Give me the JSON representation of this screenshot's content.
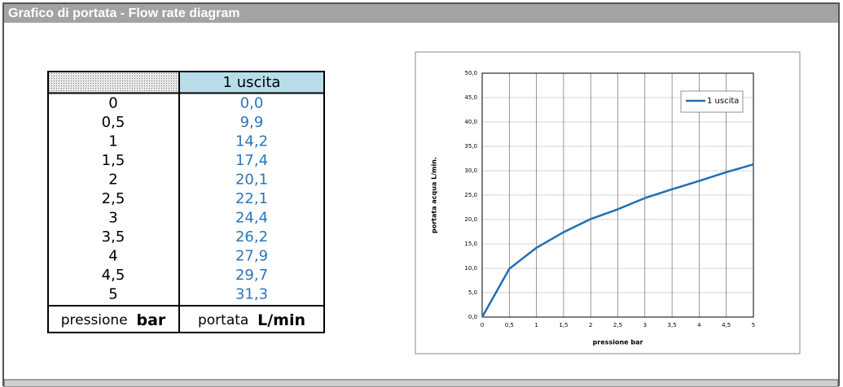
{
  "header": {
    "title": "Grafico di portata - Flow rate diagram"
  },
  "table": {
    "header": "1 uscita",
    "rows": [
      [
        "0",
        "0,0"
      ],
      [
        "0,5",
        "9,9"
      ],
      [
        "1",
        "14,2"
      ],
      [
        "1,5",
        "17,4"
      ],
      [
        "2",
        "20,1"
      ],
      [
        "2,5",
        "22,1"
      ],
      [
        "3",
        "24,4"
      ],
      [
        "3,5",
        "26,2"
      ],
      [
        "4",
        "27,9"
      ],
      [
        "4,5",
        "29,7"
      ],
      [
        "5",
        "31,3"
      ]
    ],
    "footer": [
      [
        "pressione",
        "bar"
      ],
      [
        "portata",
        "L/min"
      ]
    ]
  },
  "chart_data": {
    "type": "line",
    "x": [
      0,
      0.5,
      1,
      1.5,
      2,
      2.5,
      3,
      3.5,
      4,
      4.5,
      5
    ],
    "series": [
      {
        "name": "1 uscita",
        "color": "#1f6fb5",
        "values": [
          0,
          9.9,
          14.2,
          17.4,
          20.1,
          22.1,
          24.4,
          26.2,
          27.9,
          29.7,
          31.3
        ]
      }
    ],
    "xlabel": "pressione bar",
    "ylabel": "portata acqua  L/min.",
    "xlim": [
      0,
      5
    ],
    "ylim": [
      0,
      50
    ],
    "xticks": [
      0,
      {
        "value": 0.5,
        "label": "0,5"
      },
      1,
      {
        "value": 1.5,
        "label": "1,5"
      },
      2,
      {
        "value": 2.5,
        "label": "2,5"
      },
      3,
      {
        "value": 3.5,
        "label": "3,5"
      },
      4,
      {
        "value": 4.5,
        "label": "4,5"
      },
      5
    ],
    "yticks": [
      {
        "value": 0,
        "label": "0,0"
      },
      {
        "value": 5,
        "label": "5,0"
      },
      {
        "value": 10,
        "label": "10,0"
      },
      {
        "value": 15,
        "label": "15,0"
      },
      {
        "value": 20,
        "label": "20,0"
      },
      {
        "value": 25,
        "label": "25,0"
      },
      {
        "value": 30,
        "label": "30,0"
      },
      {
        "value": 35,
        "label": "35,0"
      },
      {
        "value": 40,
        "label": "40,0"
      },
      {
        "value": 45,
        "label": "45,0"
      },
      {
        "value": 50,
        "label": "50,0"
      }
    ],
    "grid": true,
    "legend": "top-right"
  }
}
